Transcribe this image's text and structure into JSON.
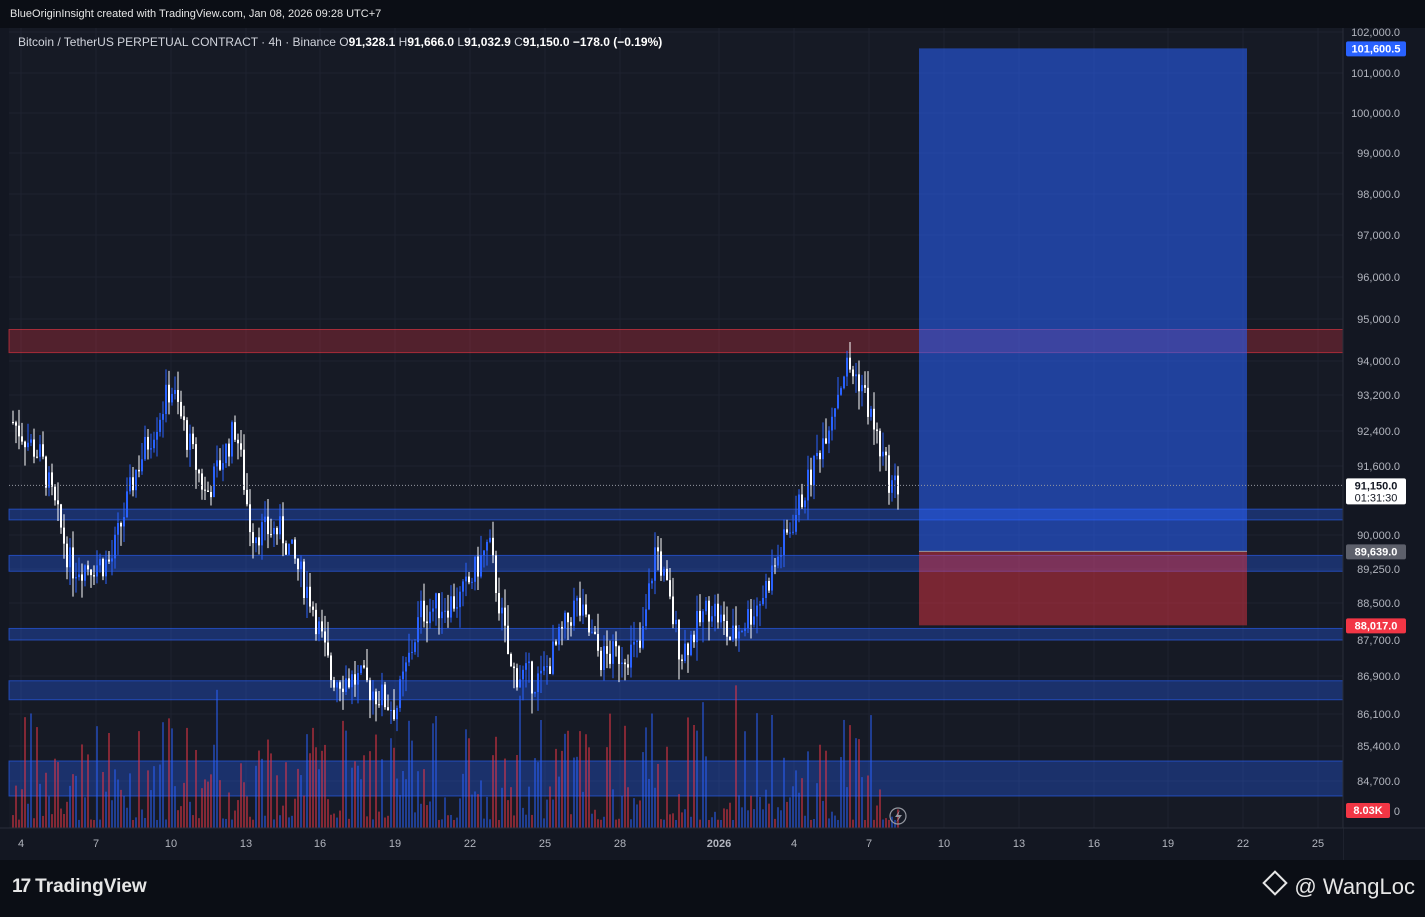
{
  "header": {
    "attribution": "BlueOriginInsight created with TradingView.com, Jan 08, 2026 09:28 UTC+7"
  },
  "legend": {
    "symbol": "Bitcoin / TetherUS PERPETUAL CONTRACT · 4h · Binance",
    "open_label": "O",
    "open": "91,328.1",
    "high_label": "H",
    "high": "91,666.0",
    "low_label": "L",
    "low": "91,032.9",
    "close_label": "C",
    "close": "91,150.0",
    "change": "−178.0 (−0.19%)"
  },
  "footer": {
    "brand": "TradingView",
    "watermark": "@ WangLoc"
  },
  "colors": {
    "up": "#2962ff",
    "down": "#ffffff",
    "zone_red": "#f23645",
    "zone_blue": "#2962ff",
    "bg": "#161a25"
  },
  "chart_data": {
    "type": "candlestick",
    "price_axis_ticks": [
      "102,000.0",
      "101,000.0",
      "100,000.0",
      "99,000.0",
      "98,000.0",
      "97,000.0",
      "96,000.0",
      "95,000.0",
      "94,000.0",
      "93,200.0",
      "92,400.0",
      "91,600.0",
      "90,000.0",
      "89,250.0",
      "88,500.0",
      "87,700.0",
      "86,900.0",
      "86,100.0",
      "85,400.0",
      "84,700.0",
      "0"
    ],
    "time_axis_ticks": [
      "4",
      "7",
      "10",
      "13",
      "16",
      "19",
      "22",
      "25",
      "28",
      "2026",
      "4",
      "7",
      "10",
      "13",
      "16",
      "19",
      "22",
      "25"
    ],
    "price_labels": [
      {
        "value": "101,600.5",
        "color": "#2962ff",
        "text_color": "#ffffff"
      },
      {
        "value": "91,150.0",
        "sub": "01:31:30",
        "color": "#ffffff",
        "text_color": "#131722"
      },
      {
        "value": "89,639.0",
        "color": "#5d606b",
        "text_color": "#ffffff"
      },
      {
        "value": "88,017.0",
        "color": "#f23645",
        "text_color": "#ffffff"
      },
      {
        "value": "8.03K",
        "color": "#f23645",
        "text_color": "#ffffff"
      }
    ],
    "last_price": 91150,
    "position": {
      "type": "long",
      "entry": 89639,
      "target": 101600.5,
      "stop": 88017
    },
    "zones": [
      {
        "color": "red",
        "low": 94200,
        "high": 94750
      },
      {
        "color": "blue",
        "low": 90350,
        "high": 90600
      },
      {
        "color": "blue",
        "low": 89200,
        "high": 89550
      },
      {
        "color": "blue",
        "low": 87700,
        "high": 87950
      },
      {
        "color": "blue",
        "low": 86400,
        "high": 86800
      },
      {
        "color": "blue",
        "low": 84400,
        "high": 85100
      }
    ]
  }
}
